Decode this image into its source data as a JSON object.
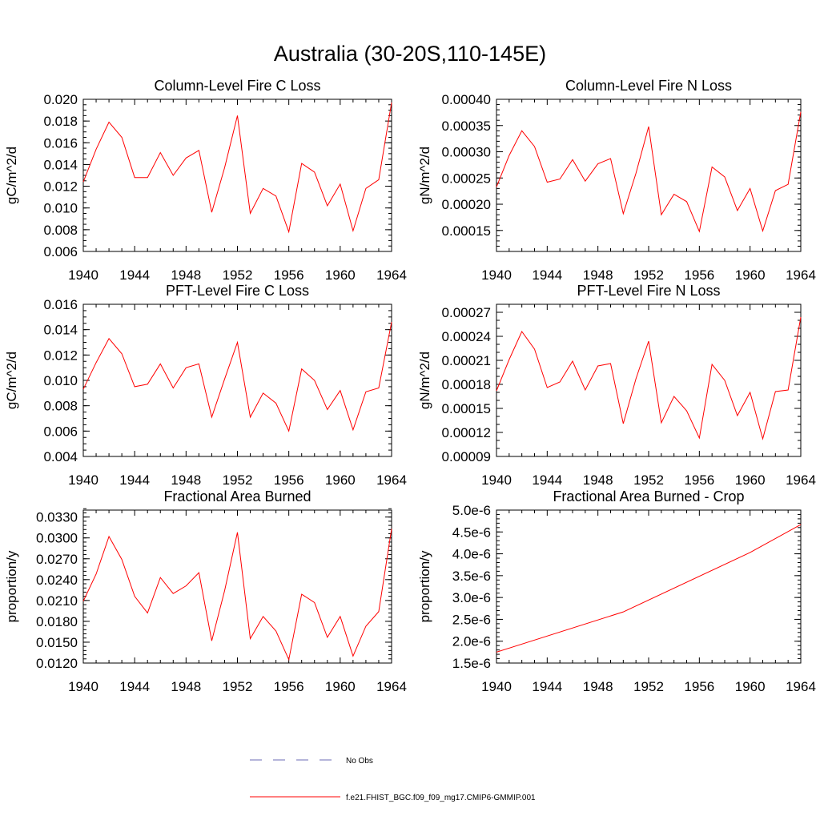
{
  "figure": {
    "title": "Australia (30-20S,110-145E)"
  },
  "colors": {
    "model": "#ff0000",
    "obs": "#6b6bb5"
  },
  "legend": {
    "entries": [
      {
        "label": "No Obs",
        "style": "dashed",
        "color": "#6b6bb5"
      },
      {
        "label": "f.e21.FHIST_BGC.f09_f09_mg17.CMIP6-GMMIP.001",
        "style": "solid",
        "color": "#ff0000"
      }
    ]
  },
  "chart_data": [
    {
      "type": "line",
      "title": "Column-Level Fire C Loss",
      "xlabel": "",
      "ylabel": "gC/m^2/d",
      "xlim": [
        1940,
        1964
      ],
      "ylim": [
        0.006,
        0.02
      ],
      "xticks": [
        1940,
        1944,
        1948,
        1952,
        1956,
        1960,
        1964
      ],
      "xtick_labels": [
        "1940",
        "1944",
        "1948",
        "1952",
        "1956",
        "1960",
        "1964"
      ],
      "yticks": [
        0.006,
        0.008,
        0.01,
        0.012,
        0.014,
        0.016,
        0.018,
        0.02
      ],
      "ytick_labels": [
        "0.006",
        "0.008",
        "0.010",
        "0.012",
        "0.014",
        "0.016",
        "0.018",
        "0.020"
      ],
      "yminor_step": 0.0005,
      "x": [
        1940,
        1941,
        1942,
        1943,
        1944,
        1945,
        1946,
        1947,
        1948,
        1949,
        1950,
        1951,
        1952,
        1953,
        1954,
        1955,
        1956,
        1957,
        1958,
        1959,
        1960,
        1961,
        1962,
        1963,
        1964
      ],
      "series": [
        {
          "name": "f.e21.FHIST_BGC.f09_f09_mg17.CMIP6-GMMIP.001",
          "values": [
            0.0124,
            0.0154,
            0.0179,
            0.0165,
            0.0128,
            0.0128,
            0.0151,
            0.013,
            0.0146,
            0.0153,
            0.0096,
            0.0137,
            0.0185,
            0.0095,
            0.0118,
            0.0111,
            0.0078,
            0.0141,
            0.0133,
            0.0102,
            0.0122,
            0.0079,
            0.0118,
            0.0126,
            0.0197
          ]
        }
      ]
    },
    {
      "type": "line",
      "title": "Column-Level Fire N Loss",
      "xlabel": "",
      "ylabel": "gN/m^2/d",
      "xlim": [
        1940,
        1964
      ],
      "ylim": [
        0.00011,
        0.0004
      ],
      "xticks": [
        1940,
        1944,
        1948,
        1952,
        1956,
        1960,
        1964
      ],
      "xtick_labels": [
        "1940",
        "1944",
        "1948",
        "1952",
        "1956",
        "1960",
        "1964"
      ],
      "yticks": [
        0.00015,
        0.0002,
        0.00025,
        0.0003,
        0.00035,
        0.0004
      ],
      "ytick_labels": [
        "0.00015",
        "0.00020",
        "0.00025",
        "0.00030",
        "0.00035",
        "0.00040"
      ],
      "yminor_step": 1e-05,
      "x": [
        1940,
        1941,
        1942,
        1943,
        1944,
        1945,
        1946,
        1947,
        1948,
        1949,
        1950,
        1951,
        1952,
        1953,
        1954,
        1955,
        1956,
        1957,
        1958,
        1959,
        1960,
        1961,
        1962,
        1963,
        1964
      ],
      "series": [
        {
          "name": "f.e21.FHIST_BGC.f09_f09_mg17.CMIP6-GMMIP.001",
          "values": [
            0.000233,
            0.000293,
            0.00034,
            0.00031,
            0.000242,
            0.000248,
            0.000285,
            0.000244,
            0.000277,
            0.000287,
            0.000182,
            0.000259,
            0.000348,
            0.00018,
            0.000219,
            0.000205,
            0.000148,
            0.000271,
            0.000252,
            0.000188,
            0.00023,
            0.000149,
            0.000226,
            0.000238,
            0.000376
          ]
        }
      ]
    },
    {
      "type": "line",
      "title": "PFT-Level Fire C Loss",
      "xlabel": "",
      "ylabel": "gC/m^2/d",
      "xlim": [
        1940,
        1964
      ],
      "ylim": [
        0.004,
        0.016
      ],
      "xticks": [
        1940,
        1944,
        1948,
        1952,
        1956,
        1960,
        1964
      ],
      "xtick_labels": [
        "1940",
        "1944",
        "1948",
        "1952",
        "1956",
        "1960",
        "1964"
      ],
      "yticks": [
        0.004,
        0.006,
        0.008,
        0.01,
        0.012,
        0.014,
        0.016
      ],
      "ytick_labels": [
        "0.004",
        "0.006",
        "0.008",
        "0.010",
        "0.012",
        "0.014",
        "0.016"
      ],
      "yminor_step": 0.0005,
      "x": [
        1940,
        1941,
        1942,
        1943,
        1944,
        1945,
        1946,
        1947,
        1948,
        1949,
        1950,
        1951,
        1952,
        1953,
        1954,
        1955,
        1956,
        1957,
        1958,
        1959,
        1960,
        1961,
        1962,
        1963,
        1964
      ],
      "series": [
        {
          "name": "f.e21.FHIST_BGC.f09_f09_mg17.CMIP6-GMMIP.001",
          "values": [
            0.0093,
            0.0114,
            0.0133,
            0.0121,
            0.0095,
            0.0097,
            0.0113,
            0.0094,
            0.011,
            0.0113,
            0.0071,
            0.0101,
            0.013,
            0.0071,
            0.009,
            0.0082,
            0.006,
            0.0109,
            0.01,
            0.0077,
            0.0092,
            0.0061,
            0.0091,
            0.0094,
            0.0146
          ]
        }
      ]
    },
    {
      "type": "line",
      "title": "PFT-Level Fire N Loss",
      "xlabel": "",
      "ylabel": "gN/m^2/d",
      "xlim": [
        1940,
        1964
      ],
      "ylim": [
        9e-05,
        0.00028
      ],
      "xticks": [
        1940,
        1944,
        1948,
        1952,
        1956,
        1960,
        1964
      ],
      "xtick_labels": [
        "1940",
        "1944",
        "1948",
        "1952",
        "1956",
        "1960",
        "1964"
      ],
      "yticks": [
        9e-05,
        0.00012,
        0.00015,
        0.00018,
        0.00021,
        0.00024,
        0.00027
      ],
      "ytick_labels": [
        "0.00009",
        "0.00012",
        "0.00015",
        "0.00018",
        "0.00021",
        "0.00024",
        "0.00027"
      ],
      "yminor_step": 1e-05,
      "x": [
        1940,
        1941,
        1942,
        1943,
        1944,
        1945,
        1946,
        1947,
        1948,
        1949,
        1950,
        1951,
        1952,
        1953,
        1954,
        1955,
        1956,
        1957,
        1958,
        1959,
        1960,
        1961,
        1962,
        1963,
        1964
      ],
      "series": [
        {
          "name": "f.e21.FHIST_BGC.f09_f09_mg17.CMIP6-GMMIP.001",
          "values": [
            0.000172,
            0.000211,
            0.000246,
            0.000224,
            0.000176,
            0.000183,
            0.000209,
            0.000173,
            0.000203,
            0.000206,
            0.000131,
            0.000187,
            0.000234,
            0.000132,
            0.000165,
            0.000147,
            0.000113,
            0.000205,
            0.000185,
            0.000141,
            0.00017,
            0.000112,
            0.000171,
            0.000173,
            0.000264
          ]
        }
      ]
    },
    {
      "type": "line",
      "title": "Fractional Area Burned",
      "xlabel": "",
      "ylabel": "proportion/y",
      "xlim": [
        1940,
        1964
      ],
      "ylim": [
        0.012,
        0.034
      ],
      "xticks": [
        1940,
        1944,
        1948,
        1952,
        1956,
        1960,
        1964
      ],
      "xtick_labels": [
        "1940",
        "1944",
        "1948",
        "1952",
        "1956",
        "1960",
        "1964"
      ],
      "yticks": [
        0.012,
        0.015,
        0.018,
        0.021,
        0.024,
        0.027,
        0.03,
        0.033
      ],
      "ytick_labels": [
        "0.0120",
        "0.0150",
        "0.0180",
        "0.0210",
        "0.0240",
        "0.0270",
        "0.0300",
        "0.0330"
      ],
      "yminor_step": 0.0006,
      "x": [
        1940,
        1941,
        1942,
        1943,
        1944,
        1945,
        1946,
        1947,
        1948,
        1949,
        1950,
        1951,
        1952,
        1953,
        1954,
        1955,
        1956,
        1957,
        1958,
        1959,
        1960,
        1961,
        1962,
        1963,
        1964
      ],
      "series": [
        {
          "name": "f.e21.FHIST_BGC.f09_f09_mg17.CMIP6-GMMIP.001",
          "values": [
            0.0209,
            0.0248,
            0.0302,
            0.0269,
            0.0216,
            0.0192,
            0.0243,
            0.022,
            0.0231,
            0.025,
            0.0152,
            0.0224,
            0.0308,
            0.0155,
            0.0187,
            0.0166,
            0.0125,
            0.0219,
            0.0207,
            0.0157,
            0.0187,
            0.013,
            0.0173,
            0.0194,
            0.0313
          ]
        }
      ]
    },
    {
      "type": "line",
      "title": "Fractional Area Burned - Crop",
      "xlabel": "",
      "ylabel": "proportion/y",
      "xlim": [
        1940,
        1964
      ],
      "ylim": [
        1.5e-06,
        5e-06
      ],
      "xticks": [
        1940,
        1944,
        1948,
        1952,
        1956,
        1960,
        1964
      ],
      "xtick_labels": [
        "1940",
        "1944",
        "1948",
        "1952",
        "1956",
        "1960",
        "1964"
      ],
      "yticks": [
        1.5e-06,
        2e-06,
        2.5e-06,
        3e-06,
        3.5e-06,
        4e-06,
        4.5e-06,
        5e-06
      ],
      "ytick_labels": [
        "1.5e-6",
        "2.0e-6",
        "2.5e-6",
        "3.0e-6",
        "3.5e-6",
        "4.0e-6",
        "4.5e-6",
        "5.0e-6"
      ],
      "yminor_step": 1e-07,
      "x": [
        1940,
        1950,
        1960,
        1964
      ],
      "series": [
        {
          "name": "f.e21.FHIST_BGC.f09_f09_mg17.CMIP6-GMMIP.001",
          "values": [
            1.75e-06,
            2.67e-06,
            4.03e-06,
            4.67e-06
          ]
        }
      ]
    }
  ]
}
